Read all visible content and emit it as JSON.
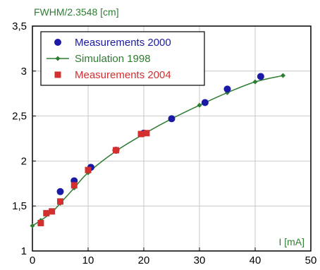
{
  "chart_data": {
    "type": "scatter",
    "title": "",
    "xlabel": "I [mA]",
    "ylabel": "FWHM/2.3548 [cm]",
    "xlim": [
      0,
      50
    ],
    "ylim": [
      1,
      3.5
    ],
    "x_ticks": [
      0,
      10,
      20,
      30,
      40,
      50
    ],
    "y_ticks": [
      1,
      1.5,
      2,
      2.5,
      3,
      3.5
    ],
    "x_tick_labels": [
      "0",
      "10",
      "20",
      "30",
      "40",
      "50"
    ],
    "y_tick_labels": [
      "1",
      "1,5",
      "2",
      "2,5",
      "3",
      "3,5"
    ],
    "grid": true,
    "legend_position": "top-left",
    "series": [
      {
        "name": "Measurements 2000",
        "kind": "scatter",
        "marker": "circle",
        "color": "#1a1aa6",
        "points": [
          [
            5,
            1.66
          ],
          [
            7.5,
            1.78
          ],
          [
            10.5,
            1.93
          ],
          [
            15,
            2.12
          ],
          [
            20,
            2.31
          ],
          [
            25,
            2.47
          ],
          [
            31,
            2.65
          ],
          [
            35,
            2.8
          ],
          [
            41,
            2.94
          ]
        ]
      },
      {
        "name": "Simulation 1998",
        "kind": "line",
        "marker": "diamond",
        "color": "#2e7d32",
        "points": [
          [
            0,
            1.28
          ],
          [
            1.5,
            1.34
          ],
          [
            3.5,
            1.43
          ],
          [
            5,
            1.53
          ],
          [
            7.5,
            1.7
          ],
          [
            10,
            1.87
          ],
          [
            15,
            2.11
          ],
          [
            20,
            2.3
          ],
          [
            25,
            2.47
          ],
          [
            30,
            2.62
          ],
          [
            35,
            2.76
          ],
          [
            40,
            2.88
          ],
          [
            45,
            2.95
          ]
        ]
      },
      {
        "name": "Measurements 2004",
        "kind": "scatter",
        "marker": "square",
        "color": "#d32f2f",
        "points": [
          [
            1.5,
            1.31
          ],
          [
            2.5,
            1.42
          ],
          [
            3.5,
            1.44
          ],
          [
            5,
            1.55
          ],
          [
            7.5,
            1.73
          ],
          [
            10,
            1.9
          ],
          [
            15,
            2.12
          ],
          [
            19.5,
            2.3
          ],
          [
            20.5,
            2.31
          ]
        ]
      }
    ]
  }
}
